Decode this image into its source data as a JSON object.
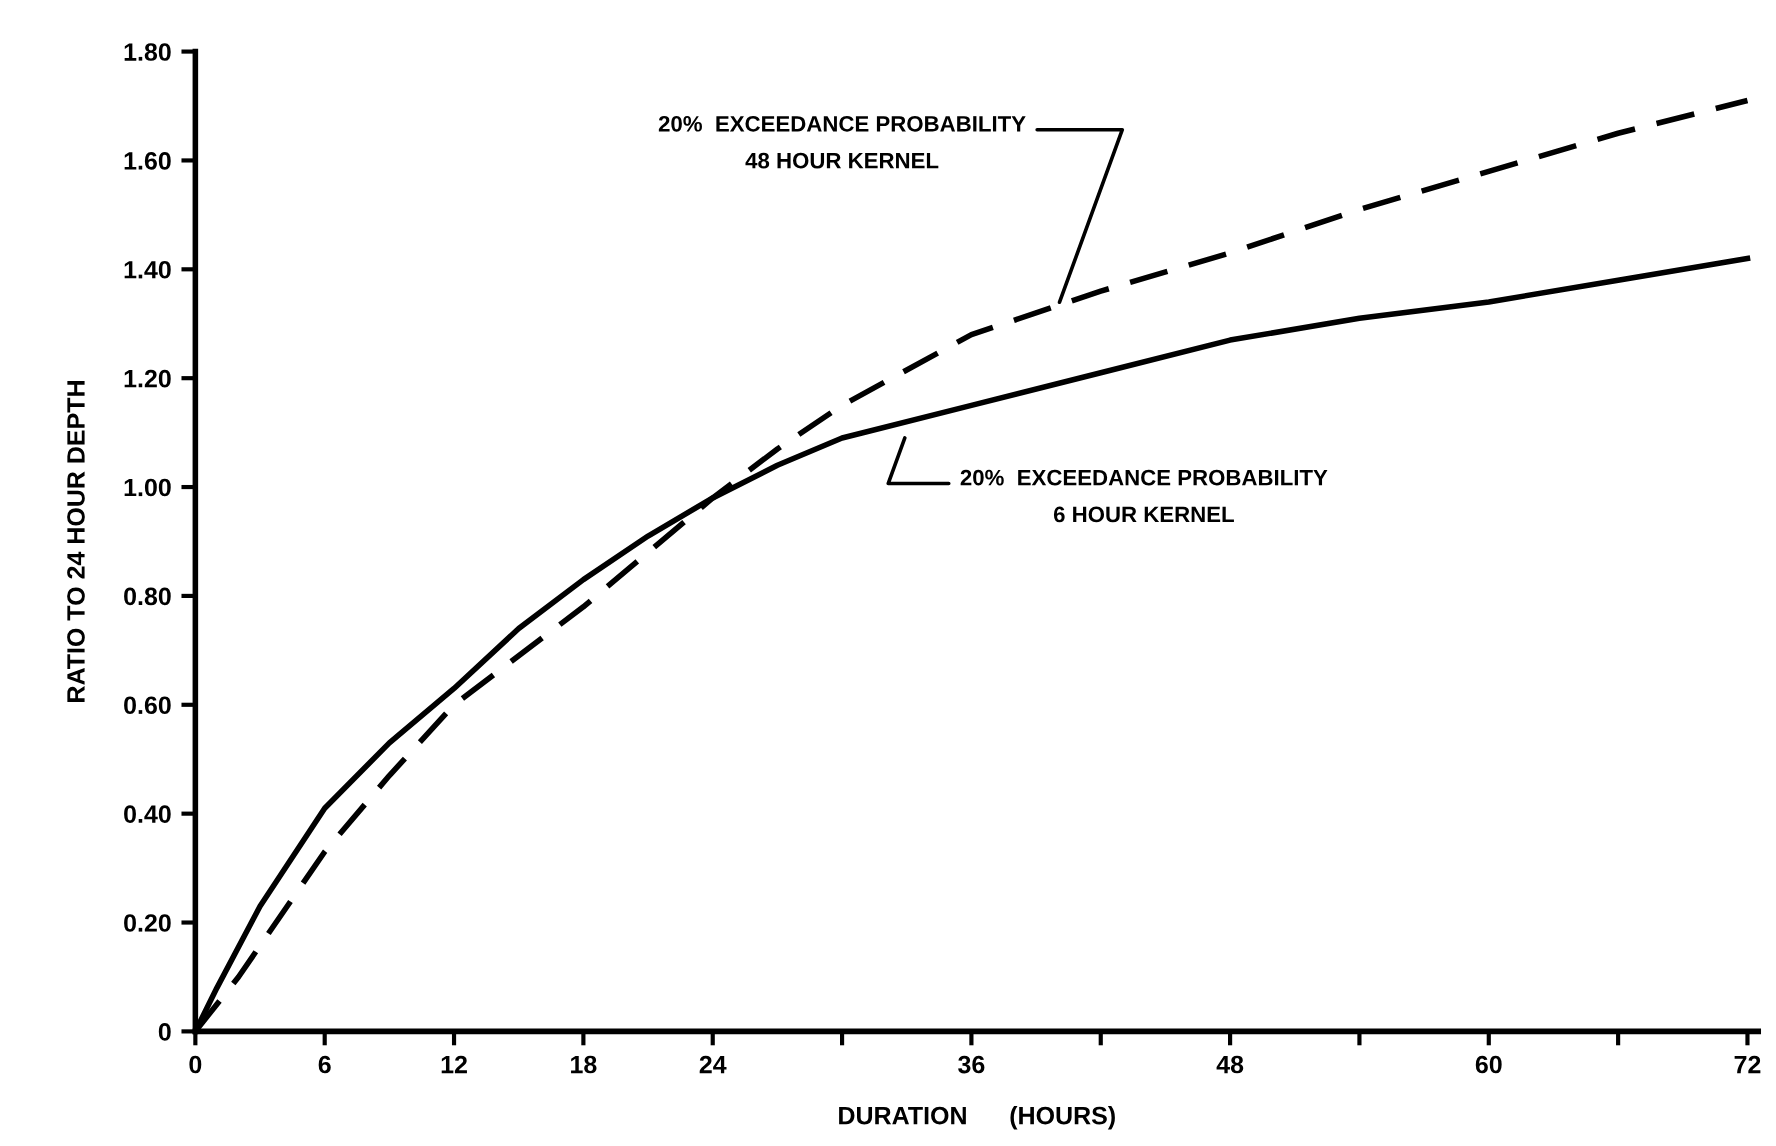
{
  "chart_data": {
    "type": "line",
    "xlabel": "DURATION      (HOURS)",
    "ylabel": "RATIO TO 24 HOUR DEPTH",
    "xlim": [
      0,
      72.5
    ],
    "ylim": [
      0,
      1.8
    ],
    "xticks": [
      0,
      6,
      12,
      18,
      24,
      {
        "value": 30,
        "label": null
      },
      36,
      {
        "value": 42,
        "label": null
      },
      48,
      {
        "value": 54,
        "label": null
      },
      60,
      {
        "value": 66,
        "label": null
      },
      72
    ],
    "yticks": [
      0,
      {
        "value": 0.2,
        "label": "0.20"
      },
      {
        "value": 0.4,
        "label": "0.40"
      },
      {
        "value": 0.6,
        "label": "0.60"
      },
      {
        "value": 0.8,
        "label": "0.80"
      },
      {
        "value": 1.0,
        "label": "1.00"
      },
      {
        "value": 1.2,
        "label": "1.20"
      },
      {
        "value": 1.4,
        "label": "1.40"
      },
      {
        "value": 1.6,
        "label": "1.60"
      },
      {
        "value": 1.8,
        "label": "1.80"
      }
    ],
    "grid": false,
    "series": [
      {
        "color": "#000000",
        "line_style": "solid",
        "x": [
          0,
          1,
          3,
          6,
          9,
          12,
          15,
          18,
          21,
          24,
          27,
          30,
          36,
          42,
          48,
          54,
          60,
          66,
          72
        ],
        "values": [
          0,
          0.08,
          0.23,
          0.41,
          0.53,
          0.63,
          0.74,
          0.83,
          0.91,
          0.98,
          1.04,
          1.09,
          1.15,
          1.21,
          1.27,
          1.31,
          1.34,
          1.38,
          1.42
        ]
      },
      {
        "color": "#000000",
        "line_style": "dashed",
        "x": [
          0,
          2,
          6,
          9,
          12,
          15,
          18,
          21,
          24,
          27,
          30,
          36,
          42,
          48,
          54,
          60,
          66,
          72
        ],
        "values": [
          0,
          0.1,
          0.33,
          0.47,
          0.6,
          0.69,
          0.78,
          0.88,
          0.98,
          1.07,
          1.15,
          1.28,
          1.36,
          1.43,
          1.51,
          1.58,
          1.65,
          1.71
        ]
      }
    ],
    "annotations": [
      {
        "text": "20%  EXCEEDANCE PROBABILITY\n48 HOUR KERNEL",
        "x": 40,
        "y": 1.33
      },
      {
        "text": "20%  EXCEEDANCE PROBABILITY\n6 HOUR KERNEL",
        "x": 33,
        "y": 1.1
      }
    ]
  }
}
